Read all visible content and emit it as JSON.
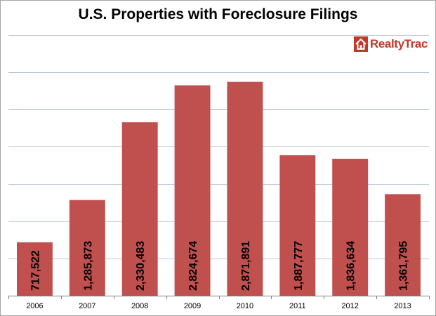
{
  "logo": {
    "text": "RealtyTrac",
    "icon": "house-icon",
    "color": "#c0392b"
  },
  "chart_data": {
    "type": "bar",
    "title": "U.S. Properties with Foreclosure Filings",
    "categories": [
      "2006",
      "2007",
      "2008",
      "2009",
      "2010",
      "2011",
      "2012",
      "2013"
    ],
    "values": [
      717522,
      1285873,
      2330483,
      2824674,
      2871891,
      1887777,
      1836634,
      1361795
    ],
    "data_labels": [
      "717,522",
      "1,285,873",
      "2,330,483",
      "2,824,674",
      "2,871,891",
      "1,887,777",
      "1,836,634",
      "1,361,795"
    ],
    "xlabel": "",
    "ylabel": "",
    "ylim": [
      0,
      3500000
    ],
    "y_gridline_step": 500000,
    "y_tick_labels_shown": false,
    "grid": true,
    "legend": "none",
    "bar_color": "#c0504d",
    "gridline_color": "#b9c3dc"
  }
}
